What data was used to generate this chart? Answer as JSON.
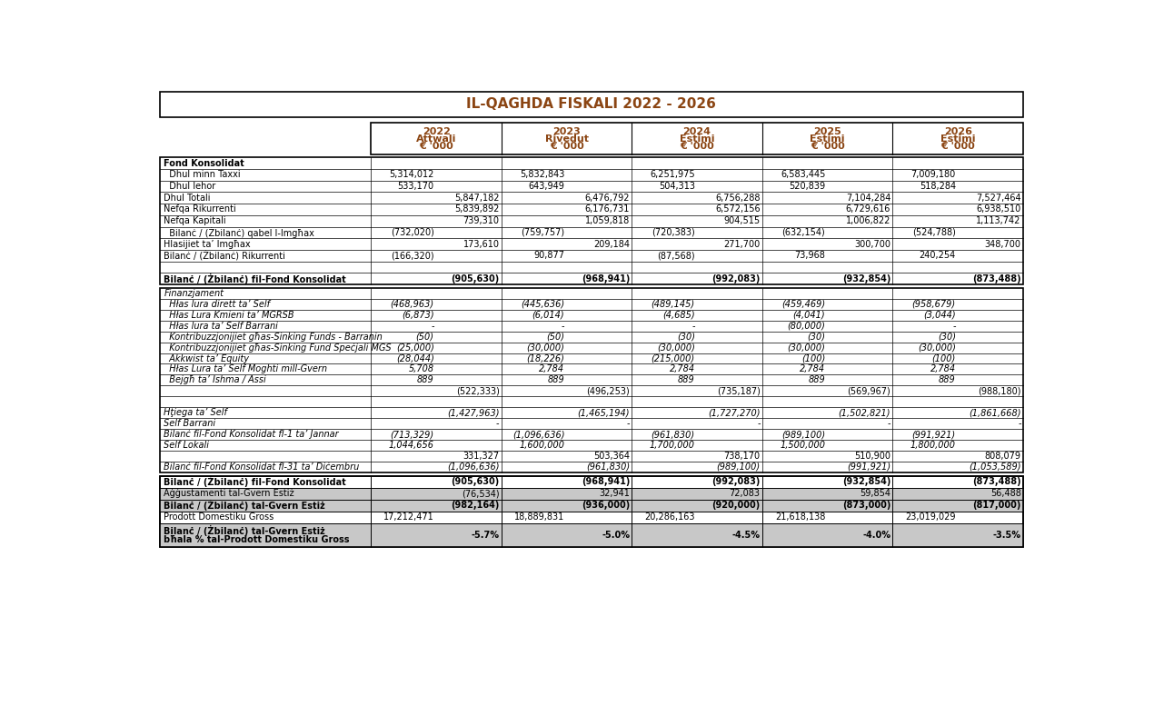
{
  "title": "IL-QAGHDA FISKALI 2022 - 2026",
  "title_color": "#8B4513",
  "year_labels": [
    "2022",
    "2023",
    "2024",
    "2025",
    "2026"
  ],
  "sub_labels": [
    "Attwali",
    "Rivedut",
    "Estimi",
    "Estimi",
    "Estimi"
  ],
  "section1_rows": [
    {
      "label": "Fond Konsolidat",
      "bold": true,
      "italic": false,
      "indent": 0,
      "vals": [
        "",
        "",
        "",
        "",
        "",
        "",
        "",
        "",
        "",
        ""
      ]
    },
    {
      "label": "  Dhul minn Taxxi",
      "bold": false,
      "italic": false,
      "indent": 1,
      "vals": [
        "5,314,012",
        "",
        "5,832,843",
        "",
        "6,251,975",
        "",
        "6,583,445",
        "",
        "7,009,180",
        ""
      ]
    },
    {
      "label": "  Dhul Iehor",
      "bold": false,
      "italic": false,
      "indent": 1,
      "vals": [
        "533,170",
        "",
        "643,949",
        "",
        "504,313",
        "",
        "520,839",
        "",
        "518,284",
        ""
      ]
    },
    {
      "label": "Dhul Totali",
      "bold": false,
      "italic": false,
      "indent": 0,
      "vals": [
        "",
        "5,847,182",
        "",
        "6,476,792",
        "",
        "6,756,288",
        "",
        "7,104,284",
        "",
        "7,527,464"
      ]
    },
    {
      "label": "Nefqa Rikurrenti",
      "bold": false,
      "italic": false,
      "indent": 0,
      "vals": [
        "",
        "5,839,892",
        "",
        "6,176,731",
        "",
        "6,572,156",
        "",
        "6,729,616",
        "",
        "6,938,510"
      ]
    },
    {
      "label": "Nefqa Kapitali",
      "bold": false,
      "italic": false,
      "indent": 0,
      "vals": [
        "",
        "739,310",
        "",
        "1,059,818",
        "",
        "904,515",
        "",
        "1,006,822",
        "",
        "1,113,742"
      ]
    },
    {
      "label": "  Bilanċ / (Żbilanċ) qabel l-Imgħax",
      "bold": false,
      "italic": false,
      "indent": 1,
      "vals": [
        "(732,020)",
        "",
        "(759,757)",
        "",
        "(720,383)",
        "",
        "(632,154)",
        "",
        "(524,788)",
        ""
      ]
    },
    {
      "label": "Hlasijiet ta’ Imgħax",
      "bold": false,
      "italic": false,
      "indent": 0,
      "vals": [
        "",
        "173,610",
        "",
        "209,184",
        "",
        "271,700",
        "",
        "300,700",
        "",
        "348,700"
      ]
    },
    {
      "label": "Bilanċ / (Żbilanċ) Rikurrenti",
      "bold": false,
      "italic": false,
      "indent": 0,
      "vals": [
        "(166,320)",
        "",
        "90,877",
        "",
        "(87,568)",
        "",
        "73,968",
        "",
        "240,254",
        ""
      ]
    },
    {
      "label": "",
      "bold": false,
      "italic": false,
      "indent": 0,
      "vals": [
        "",
        "",
        "",
        "",
        "",
        "",
        "",
        "",
        "",
        ""
      ]
    },
    {
      "label": "Bilanċ / (Żbilanċ) fil-Fond Konsolidat",
      "bold": true,
      "italic": false,
      "indent": 0,
      "vals": [
        "",
        "(905,630)",
        "",
        "(968,941)",
        "",
        "(992,083)",
        "",
        "(932,854)",
        "",
        "(873,488)"
      ]
    }
  ],
  "section2_rows": [
    {
      "label": "Finanzjament",
      "bold": false,
      "italic": true,
      "indent": 0,
      "vals": [
        "",
        "",
        "",
        "",
        "",
        "",
        "",
        "",
        "",
        ""
      ]
    },
    {
      "label": "  Hłas lura dirett ta’ Self",
      "bold": false,
      "italic": true,
      "indent": 1,
      "vals": [
        "(468,963)",
        "",
        "(445,636)",
        "",
        "(489,145)",
        "",
        "(459,469)",
        "",
        "(958,679)",
        ""
      ]
    },
    {
      "label": "  Hłas Lura Kmieni ta’ MGRSB",
      "bold": false,
      "italic": true,
      "indent": 1,
      "vals": [
        "(6,873)",
        "",
        "(6,014)",
        "",
        "(4,685)",
        "",
        "(4,041)",
        "",
        "(3,044)",
        ""
      ]
    },
    {
      "label": "  Hłas lura ta’ Self Barrani",
      "bold": false,
      "italic": true,
      "indent": 1,
      "vals": [
        "-",
        "",
        "-",
        "",
        "-",
        "",
        "(80,000)",
        "",
        "-",
        ""
      ]
    },
    {
      "label": "  Kontribuzzjonijiet għas-Sinking Funds - Barranin",
      "bold": false,
      "italic": true,
      "indent": 1,
      "vals": [
        "(50)",
        "",
        "(50)",
        "",
        "(30)",
        "",
        "(30)",
        "",
        "(30)",
        ""
      ]
    },
    {
      "label": "  Kontribuzzjonijiet għas-Sinking Fund Speċjali MGS",
      "bold": false,
      "italic": true,
      "indent": 1,
      "vals": [
        "(25,000)",
        "",
        "(30,000)",
        "",
        "(30,000)",
        "",
        "(30,000)",
        "",
        "(30,000)",
        ""
      ]
    },
    {
      "label": "  Akkwist ta’ Equity",
      "bold": false,
      "italic": true,
      "indent": 1,
      "vals": [
        "(28,044)",
        "",
        "(18,226)",
        "",
        "(215,000)",
        "",
        "(100)",
        "",
        "(100)",
        ""
      ]
    },
    {
      "label": "  Hłas Lura ta’ Self Moghti mill-Gvern",
      "bold": false,
      "italic": true,
      "indent": 1,
      "vals": [
        "5,708",
        "",
        "2,784",
        "",
        "2,784",
        "",
        "2,784",
        "",
        "2,784",
        ""
      ]
    },
    {
      "label": "  Bejgħ ta’ Ishma / Assi",
      "bold": false,
      "italic": true,
      "indent": 1,
      "vals": [
        "889",
        "",
        "889",
        "",
        "889",
        "",
        "889",
        "",
        "889",
        ""
      ]
    },
    {
      "label": "",
      "bold": false,
      "italic": false,
      "indent": 0,
      "vals": [
        "",
        "(522,333)",
        "",
        "(496,253)",
        "",
        "(735,187)",
        "",
        "(569,967)",
        "",
        "(988,180)"
      ]
    },
    {
      "label": "",
      "bold": false,
      "italic": false,
      "indent": 0,
      "vals": [
        "",
        "",
        "",
        "",
        "",
        "",
        "",
        "",
        "",
        ""
      ]
    },
    {
      "label": "Hţiega ta’ Self",
      "bold": false,
      "italic": true,
      "indent": 0,
      "vals": [
        "",
        "(1,427,963)",
        "",
        "(1,465,194)",
        "",
        "(1,727,270)",
        "",
        "(1,502,821)",
        "",
        "(1,861,668)"
      ]
    },
    {
      "label": "Self Barrani",
      "bold": false,
      "italic": true,
      "indent": 0,
      "vals": [
        "",
        "-",
        "",
        "-",
        "",
        "-",
        "",
        "-",
        "",
        "-"
      ]
    },
    {
      "label": "Bilanċ fil-Fond Konsolidat fl-1 ta’ Jannar",
      "bold": false,
      "italic": true,
      "indent": 0,
      "vals": [
        "(713,329)",
        "",
        "(1,096,636)",
        "",
        "(961,830)",
        "",
        "(989,100)",
        "",
        "(991,921)",
        ""
      ]
    },
    {
      "label": "Self Lokali",
      "bold": false,
      "italic": true,
      "indent": 0,
      "vals": [
        "1,044,656",
        "",
        "1,600,000",
        "",
        "1,700,000",
        "",
        "1,500,000",
        "",
        "1,800,000",
        ""
      ]
    },
    {
      "label": "",
      "bold": false,
      "italic": false,
      "indent": 0,
      "vals": [
        "",
        "331,327",
        "",
        "503,364",
        "",
        "738,170",
        "",
        "510,900",
        "",
        "808,079"
      ]
    },
    {
      "label": "Bilanċ fil-Fond Konsolidat fl-31 ta’ Diċembru",
      "bold": false,
      "italic": true,
      "indent": 0,
      "vals": [
        "",
        "(1,096,636)",
        "",
        "(961,830)",
        "",
        "(989,100)",
        "",
        "(991,921)",
        "",
        "(1,053,589)"
      ]
    }
  ],
  "section3_rows": [
    {
      "label": "Bilanċ / (Żbilanċ) fil-Fond Konsolidat",
      "bold": true,
      "italic": false,
      "shaded": false,
      "vals": [
        "",
        "(905,630)",
        "",
        "(968,941)",
        "",
        "(992,083)",
        "",
        "(932,854)",
        "",
        "(873,488)"
      ]
    },
    {
      "label": "Aġġustamenti tal-Gvern Estiż",
      "bold": false,
      "italic": false,
      "shaded": true,
      "vals": [
        "",
        "(76,534)",
        "",
        "32,941",
        "",
        "72,083",
        "",
        "59,854",
        "",
        "56,488"
      ]
    },
    {
      "label": "Bilanċ / (Żbilanċ) tal-Gvern Estiż",
      "bold": true,
      "italic": false,
      "shaded": true,
      "vals": [
        "",
        "(982,164)",
        "",
        "(936,000)",
        "",
        "(920,000)",
        "",
        "(873,000)",
        "",
        "(817,000)"
      ]
    },
    {
      "label": "Prodott Domestiku Gross",
      "bold": false,
      "italic": false,
      "shaded": false,
      "vals": [
        "17,212,471",
        "",
        "18,889,831",
        "",
        "20,286,163",
        "",
        "21,618,138",
        "",
        "23,019,029",
        ""
      ]
    },
    {
      "label": "Bilanċ / (Żbilanċ) tal-Gvern Estiż\nbħala % tal-Prodott Domestiku Gross",
      "bold": true,
      "italic": false,
      "shaded": true,
      "vals": [
        "",
        "-5.7%",
        "",
        "-5.0%",
        "",
        "-4.5%",
        "",
        "-4.0%",
        "",
        "-3.5%"
      ]
    }
  ]
}
